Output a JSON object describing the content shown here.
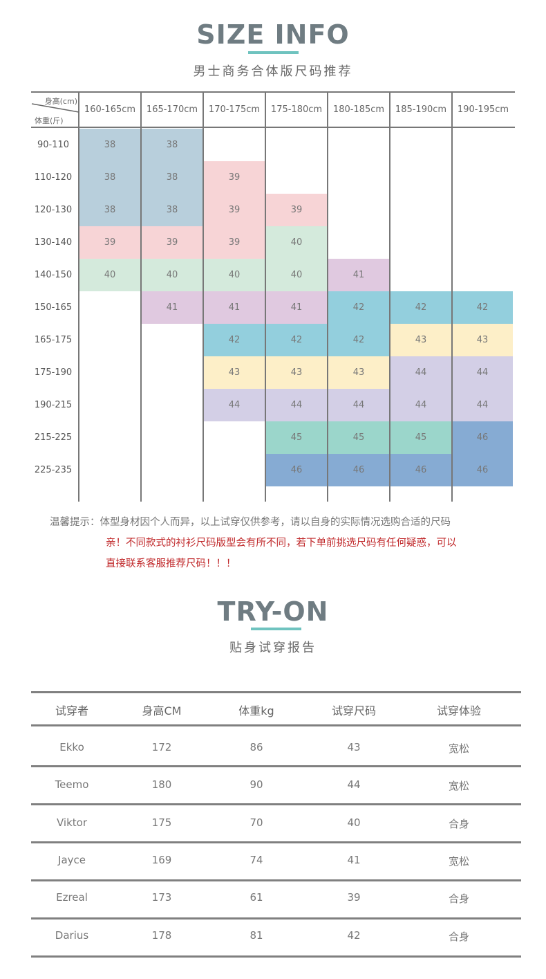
{
  "size_info": {
    "title": "SIZE INFO",
    "subtitle": "男士商务合体版尺码推荐",
    "corner_top": "身高(cm)",
    "corner_bottom": "体重(斤)",
    "height_columns": [
      "160-165cm",
      "165-170cm",
      "170-175cm",
      "175-180cm",
      "180-185cm",
      "185-190cm",
      "190-195cm"
    ],
    "weight_rows": [
      "90-110",
      "110-120",
      "120-130",
      "130-140",
      "140-150",
      "150-165",
      "165-175",
      "175-190",
      "190-215",
      "215-225",
      "225-235"
    ],
    "colors": {
      "38": "#b8cfdc",
      "39": "#f7d4d6",
      "40": "#d4eadc",
      "41": "#e0c9e0",
      "42": "#93cfdd",
      "43": "#fdefc8",
      "44": "#d3cfe6",
      "45": "#9bd6cb",
      "46": "#86abd3"
    },
    "grid": [
      [
        "38",
        "38",
        "",
        "",
        "",
        "",
        ""
      ],
      [
        "38",
        "38",
        "39",
        "",
        "",
        "",
        ""
      ],
      [
        "38",
        "38",
        "39",
        "39",
        "",
        "",
        ""
      ],
      [
        "39",
        "39",
        "39",
        "40",
        "",
        "",
        ""
      ],
      [
        "40",
        "40",
        "40",
        "40",
        "41",
        "",
        ""
      ],
      [
        "",
        "41",
        "41",
        "41",
        "42",
        "42",
        "42"
      ],
      [
        "",
        "",
        "42",
        "42",
        "42",
        "43",
        "43"
      ],
      [
        "",
        "",
        "43",
        "43",
        "43",
        "44",
        "44"
      ],
      [
        "",
        "",
        "44",
        "44",
        "44",
        "44",
        "44"
      ],
      [
        "",
        "",
        "",
        "45",
        "45",
        "45",
        "46"
      ],
      [
        "",
        "",
        "",
        "46",
        "46",
        "46",
        "46"
      ]
    ]
  },
  "notes": {
    "label": "温馨提示：",
    "line1": "体型身材因个人而异，以上试穿仅供参考，请以自身的实际情况选购合适的尺码",
    "line2": "亲！不同款式的衬衫尺码版型会有所不同，若下单前挑选尺码有任何疑惑，可以",
    "line3": "直接联系客服推荐尺码！！！",
    "warn_color": "#c0282a"
  },
  "try_on": {
    "title": "TRY-ON",
    "subtitle": "贴身试穿报告",
    "headers": [
      "试穿者",
      "身高CM",
      "体重kg",
      "试穿尺码",
      "试穿体验"
    ],
    "rows": [
      [
        "Ekko",
        "172",
        "86",
        "43",
        "宽松"
      ],
      [
        "Teemo",
        "180",
        "90",
        "44",
        "宽松"
      ],
      [
        "Viktor",
        "175",
        "70",
        "40",
        "合身"
      ],
      [
        "Jayce",
        "169",
        "74",
        "41",
        "宽松"
      ],
      [
        "Ezreal",
        "173",
        "61",
        "39",
        "合身"
      ],
      [
        "Darius",
        "178",
        "81",
        "42",
        "合身"
      ]
    ]
  }
}
